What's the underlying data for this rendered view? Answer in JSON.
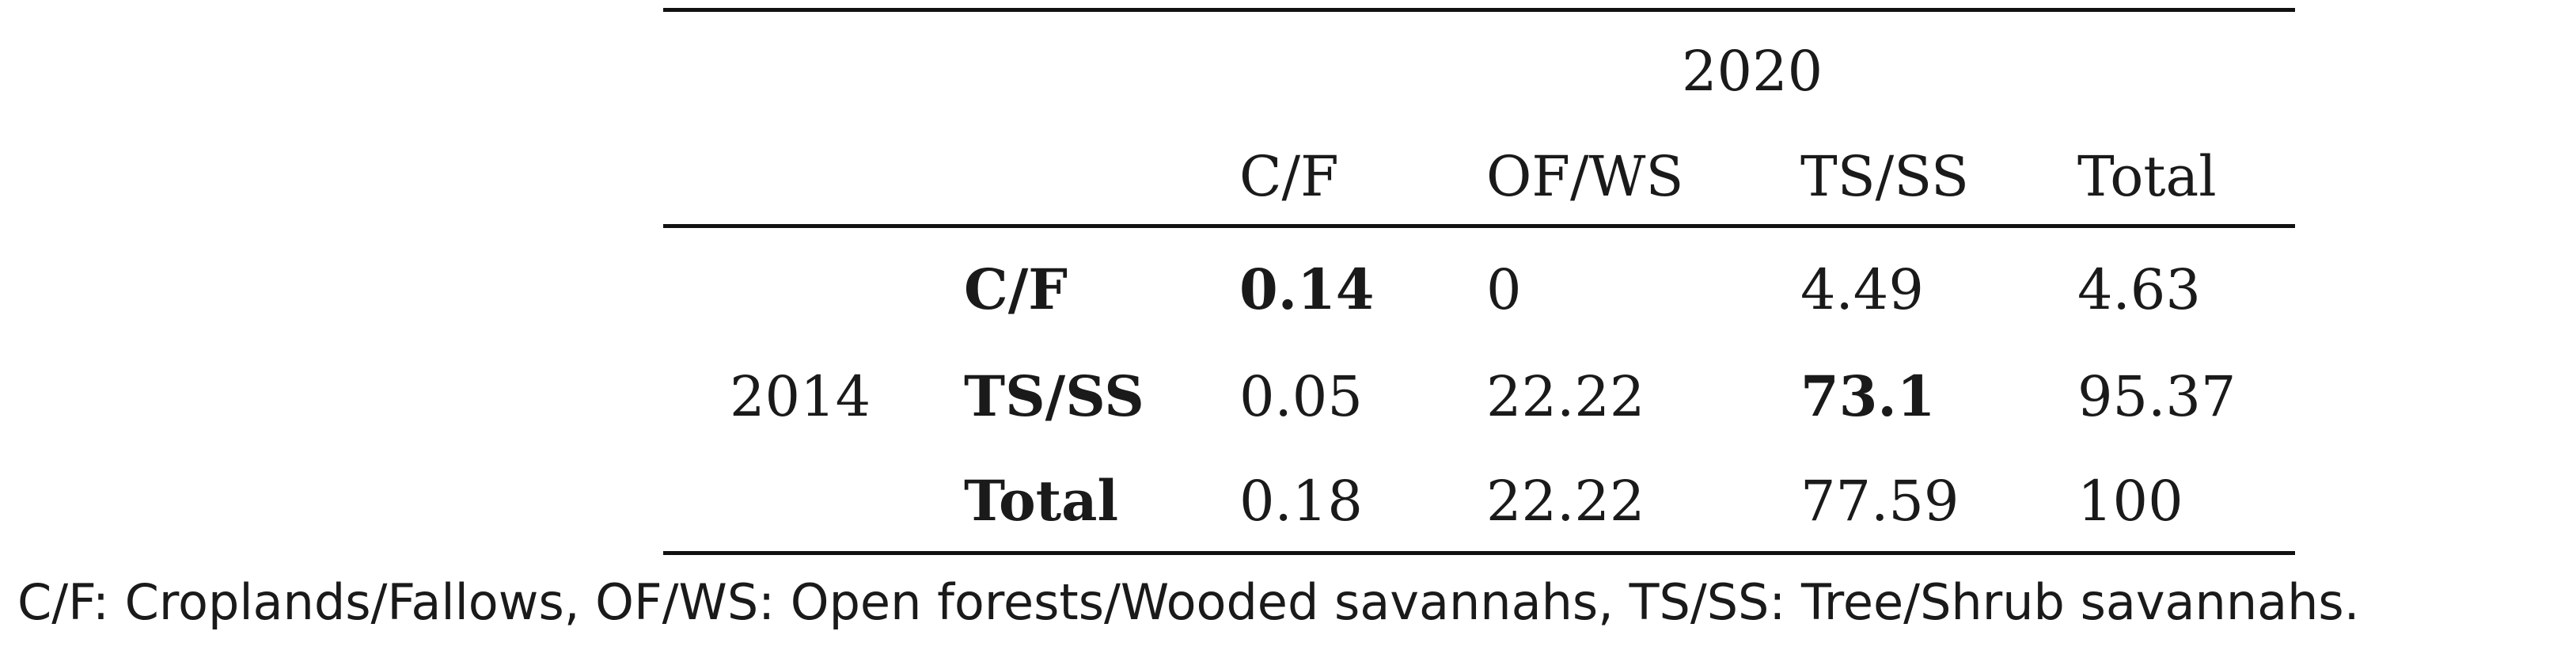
{
  "table": {
    "col_group_label": "2020",
    "row_group_label": "2014",
    "columns": [
      "C/F",
      "OF/WS",
      "TS/SS",
      "Total"
    ],
    "rows": [
      {
        "label": "C/F",
        "cells": [
          "0.14",
          "0",
          "4.49",
          "4.63"
        ]
      },
      {
        "label": "TS/SS",
        "cells": [
          "0.05",
          "22.22",
          "73.1",
          "95.37"
        ]
      },
      {
        "label": "Total",
        "cells": [
          "0.18",
          "22.22",
          "77.59",
          "100"
        ]
      }
    ]
  },
  "caption": "C/F: Croplands/Fallows, OF/WS: Open forests/Wooded savannahs, TS/SS: Tree/Shrub savannahs."
}
